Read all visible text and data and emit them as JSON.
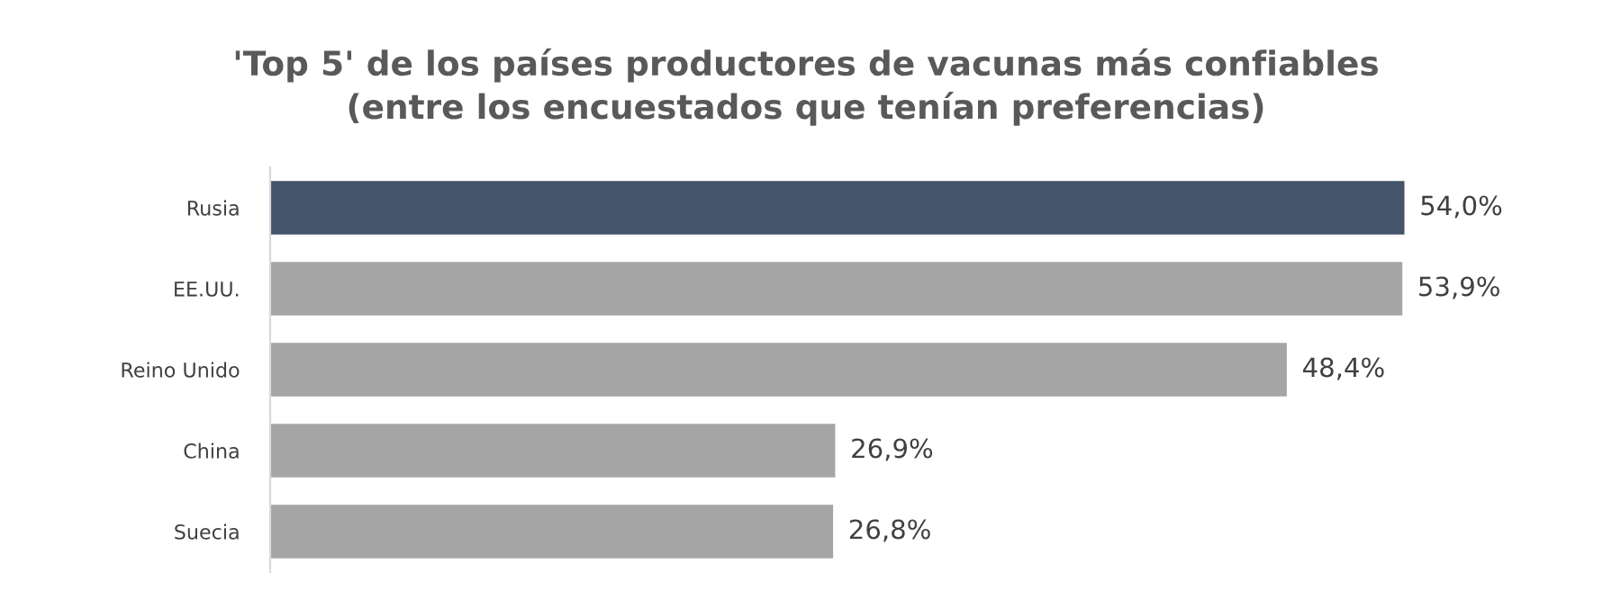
{
  "chart_data": {
    "type": "bar",
    "orientation": "horizontal",
    "title": "'Top 5' de los países productores de vacunas más confiables\n(entre los encuestados que tenían preferencias)",
    "categories": [
      "Rusia",
      "EE.UU.",
      "Reino Unido",
      "China",
      "Suecia"
    ],
    "values": [
      54.0,
      53.9,
      48.4,
      26.9,
      26.8
    ],
    "colors": [
      "#44546a",
      "#a5a5a5",
      "#a5a5a5",
      "#a5a5a5",
      "#a5a5a5"
    ],
    "value_labels": [
      "54,0%",
      "53,9%",
      "48,4%",
      "26,9%",
      "26,8%"
    ],
    "grid": false,
    "legend": false
  }
}
